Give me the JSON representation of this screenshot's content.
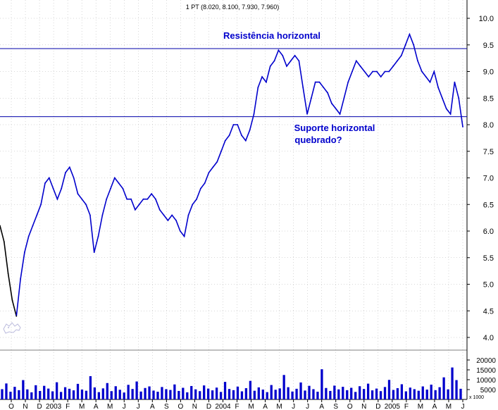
{
  "chart_data": {
    "type": "line",
    "title": "1 PT (8.020, 8.100, 7.930, 7.960)",
    "y_ticks": [
      "10.0",
      "9.5",
      "9.0",
      "8.5",
      "8.0",
      "7.5",
      "7.0",
      "6.5",
      "6.0",
      "5.5",
      "5.0",
      "4.5",
      "4.0"
    ],
    "y_values": [
      10.0,
      9.5,
      9.0,
      8.5,
      8.0,
      7.5,
      7.0,
      6.5,
      6.0,
      5.5,
      5.0,
      4.5,
      4.0
    ],
    "ylim": [
      3.7,
      10.2
    ],
    "x_labels": [
      "O",
      "N",
      "D",
      "2003",
      "F",
      "M",
      "A",
      "M",
      "J",
      "J",
      "A",
      "S",
      "O",
      "N",
      "D",
      "2004",
      "F",
      "M",
      "A",
      "M",
      "J",
      "J",
      "A",
      "S",
      "O",
      "N",
      "D",
      "2005",
      "F",
      "M",
      "A",
      "M",
      "J"
    ],
    "series": [
      {
        "values": [
          6.1,
          5.8,
          5.2,
          4.7,
          4.4,
          5.1,
          5.6,
          5.9,
          6.1,
          6.3,
          6.5,
          6.9,
          7.0,
          6.8,
          6.6,
          6.8,
          7.1,
          7.2,
          7.0,
          6.7,
          6.6,
          6.5,
          6.3,
          5.6,
          5.9,
          6.3,
          6.6,
          6.8,
          7.0,
          6.9,
          6.8,
          6.6,
          6.6,
          6.4,
          6.5,
          6.6,
          6.6,
          6.7,
          6.6,
          6.4,
          6.3,
          6.2,
          6.3,
          6.2,
          6.0,
          5.9,
          6.3,
          6.5,
          6.6,
          6.8,
          6.9,
          7.1,
          7.2,
          7.3,
          7.5,
          7.7,
          7.8,
          8.0,
          8.0,
          7.8,
          7.7,
          7.9,
          8.2,
          8.7,
          8.9,
          8.8,
          9.1,
          9.2,
          9.4,
          9.3,
          9.1,
          9.2,
          9.3,
          9.2,
          8.7,
          8.2,
          8.5,
          8.8,
          8.8,
          8.7,
          8.6,
          8.4,
          8.3,
          8.2,
          8.5,
          8.8,
          9.0,
          9.2,
          9.1,
          9.0,
          8.9,
          9.0,
          9.0,
          8.9,
          9.0,
          9.0,
          9.1,
          9.2,
          9.3,
          9.5,
          9.7,
          9.5,
          9.2,
          9.0,
          8.9,
          8.8,
          9.0,
          8.7,
          8.5,
          8.3,
          8.2,
          8.8,
          8.5,
          7.96
        ]
      }
    ],
    "volume": {
      "ticks": [
        "20000",
        "15000",
        "10000",
        "5000"
      ],
      "tick_values": [
        20000,
        15000,
        10000,
        5000
      ],
      "unit": "x 1000",
      "max": 25000,
      "values": [
        5200,
        8100,
        3900,
        6400,
        4700,
        9800,
        5100,
        3600,
        7200,
        4300,
        6900,
        5500,
        4100,
        8700,
        3800,
        6200,
        5400,
        4600,
        7900,
        5000,
        4400,
        11800,
        6100,
        3700,
        5600,
        8300,
        4200,
        6700,
        4900,
        3500,
        7400,
        5300,
        9100,
        4000,
        5800,
        6600,
        4500,
        3900,
        6300,
        5200,
        4800,
        7600,
        4300,
        5900,
        3600,
        6800,
        5100,
        4200,
        7100,
        5500,
        4600,
        6000,
        3800,
        8900,
        5300,
        4700,
        6500,
        4100,
        5700,
        9400,
        4400,
        6100,
        5000,
        3700,
        7300,
        4900,
        5600,
        12400,
        6200,
        4000,
        5400,
        8600,
        4500,
        6900,
        5200,
        3900,
        15300,
        5800,
        4300,
        7000,
        5100,
        6400,
        4700,
        5900,
        3800,
        6700,
        5300,
        8000,
        4600,
        5500,
        4200,
        6300,
        9900,
        4800,
        5700,
        7700,
        4100,
        6000,
        5200,
        4400,
        6600,
        5000,
        7500,
        4700,
        6200,
        11200,
        5100,
        16200,
        9800,
        5400
      ]
    },
    "annotations": [
      "Resistência horizontal",
      "Suporte horizontal",
      "quebrado?"
    ],
    "resistance": 9.43,
    "support": 8.15
  },
  "colors": {
    "price": "#0000cc",
    "price_early": "#000000",
    "volume": "#0000cc",
    "level_lines": "#0000aa",
    "grid": "#b0b0b0"
  },
  "icons": [
    "watermark-logo-icon"
  ]
}
